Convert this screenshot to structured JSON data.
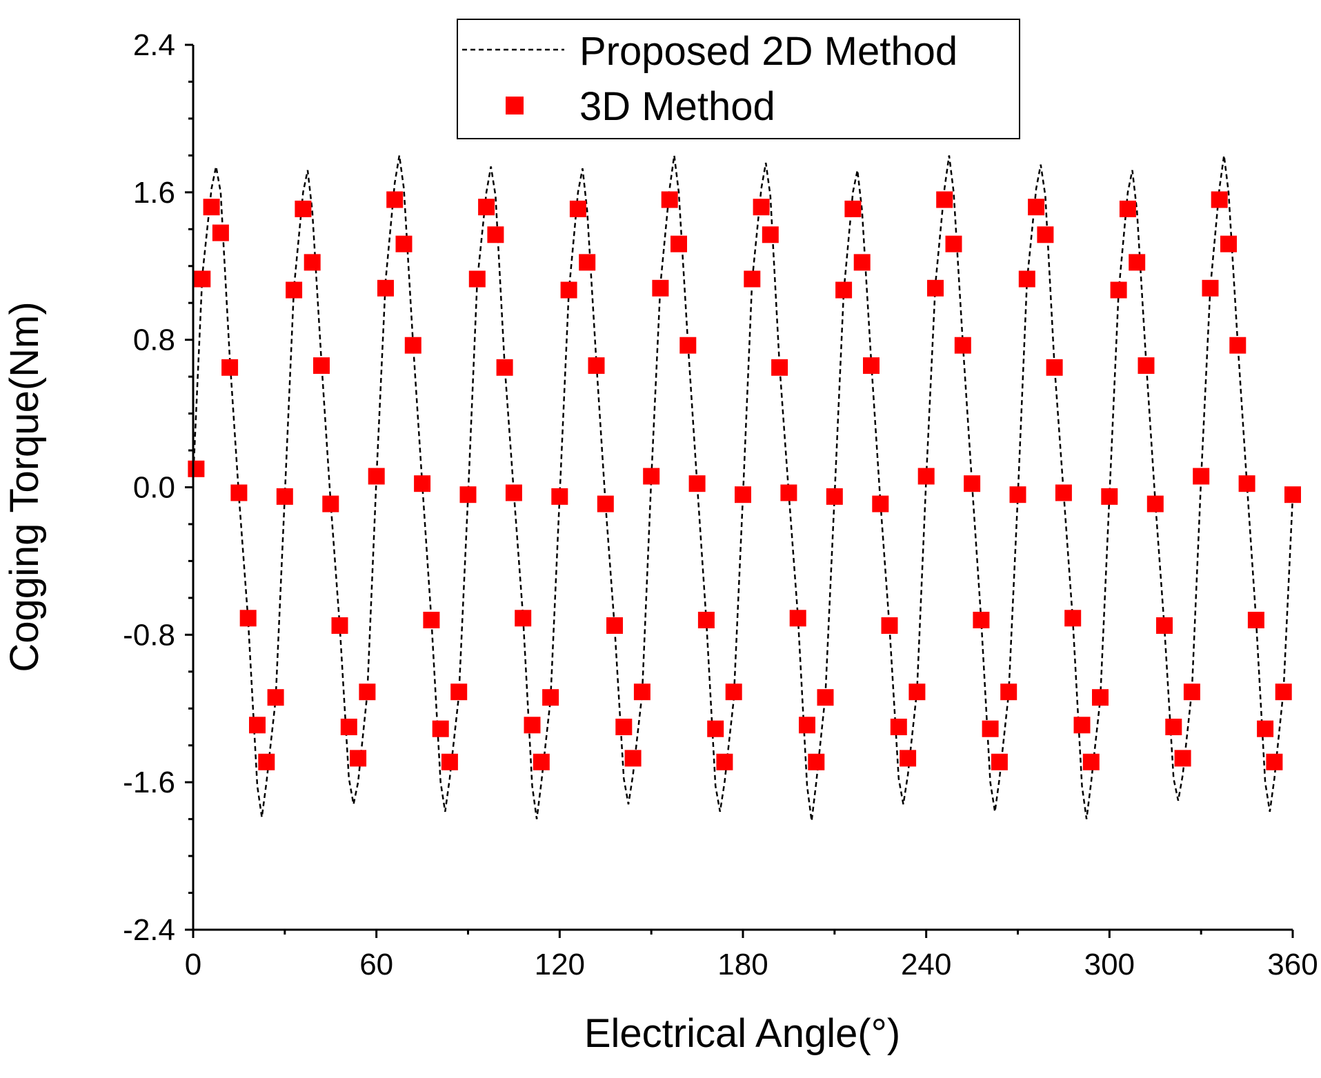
{
  "chart_data": {
    "type": "line",
    "title": "",
    "xlabel": "Electrical Angle(°)",
    "ylabel": "Cogging Torque(Nm)",
    "xlim": [
      0,
      360
    ],
    "ylim": [
      -2.4,
      2.4
    ],
    "x_ticks": [
      0,
      60,
      120,
      180,
      240,
      300,
      360
    ],
    "y_ticks": [
      -2.4,
      -1.6,
      -0.8,
      0.0,
      0.8,
      1.6,
      2.4
    ],
    "x_tick_labels": [
      "0",
      "60",
      "120",
      "180",
      "240",
      "300",
      "360"
    ],
    "y_tick_labels": [
      "-2.4",
      "-1.6",
      "-0.8",
      "0.0",
      "0.8",
      "1.6",
      "2.4"
    ],
    "grid": false,
    "legend_position": "top-center",
    "period_deg": 30,
    "series": [
      {
        "name": "Proposed 2D Method",
        "style": "dashed-line",
        "color": "#000000",
        "x": [
          0,
          3,
          6,
          7.5,
          9,
          12,
          15,
          18,
          21,
          22.5,
          24,
          27,
          30,
          33,
          36,
          37.5,
          39,
          42,
          45,
          48,
          51,
          52.5,
          54,
          57,
          60,
          63,
          66,
          67.5,
          69,
          72,
          75,
          78,
          81,
          82.5,
          84,
          87,
          90,
          93,
          96,
          97.5,
          99,
          102,
          105,
          108,
          111,
          112.5,
          114,
          117,
          120,
          123,
          126,
          127.5,
          129,
          132,
          135,
          138,
          141,
          142.5,
          144,
          147,
          150,
          153,
          156,
          157.5,
          159,
          162,
          165,
          168,
          171,
          172.5,
          174,
          177,
          180,
          183,
          186,
          187.5,
          189,
          192,
          195,
          198,
          201,
          202.5,
          204,
          207,
          210,
          213,
          216,
          217.5,
          219,
          222,
          225,
          228,
          231,
          232.5,
          234,
          237,
          240,
          243,
          246,
          247.5,
          249,
          252,
          255,
          258,
          261,
          262.5,
          264,
          267,
          270,
          273,
          276,
          277.5,
          279,
          282,
          285,
          288,
          291,
          292.5,
          294,
          297,
          300,
          303,
          306,
          307.5,
          309,
          312,
          315,
          318,
          321,
          322.5,
          324,
          327,
          330,
          333,
          336,
          337.5,
          339,
          342,
          345,
          348,
          351,
          352.5,
          354,
          357,
          360
        ],
        "y": [
          0.05,
          1.15,
          1.62,
          1.74,
          1.6,
          0.7,
          -0.05,
          -0.72,
          -1.62,
          -1.79,
          -1.6,
          -1.15,
          -0.05,
          1.08,
          1.6,
          1.72,
          1.5,
          0.68,
          -0.08,
          -0.75,
          -1.58,
          -1.72,
          -1.6,
          -1.12,
          0.05,
          1.12,
          1.65,
          1.8,
          1.62,
          0.78,
          0.02,
          -0.72,
          -1.6,
          -1.76,
          -1.58,
          -1.13,
          -0.05,
          1.12,
          1.6,
          1.74,
          1.58,
          0.66,
          -0.03,
          -0.7,
          -1.62,
          -1.8,
          -1.6,
          -1.15,
          -0.05,
          1.06,
          1.6,
          1.73,
          1.5,
          0.68,
          -0.09,
          -0.76,
          -1.58,
          -1.72,
          -1.56,
          -1.12,
          0.05,
          1.1,
          1.62,
          1.8,
          1.6,
          0.78,
          0.02,
          -0.72,
          -1.62,
          -1.76,
          -1.6,
          -1.15,
          -0.05,
          1.12,
          1.62,
          1.76,
          1.58,
          0.66,
          -0.03,
          -0.7,
          -1.62,
          -1.81,
          -1.6,
          -1.13,
          -0.05,
          1.06,
          1.6,
          1.72,
          1.5,
          0.68,
          -0.08,
          -0.76,
          -1.58,
          -1.72,
          -1.56,
          -1.1,
          0.05,
          1.1,
          1.62,
          1.8,
          1.6,
          0.78,
          0.02,
          -0.72,
          -1.6,
          -1.76,
          -1.58,
          -1.12,
          -0.05,
          1.12,
          1.62,
          1.75,
          1.58,
          0.66,
          -0.03,
          -0.72,
          -1.62,
          -1.8,
          -1.6,
          -1.15,
          -0.05,
          1.06,
          1.6,
          1.72,
          1.5,
          0.68,
          -0.08,
          -0.76,
          -1.58,
          -1.7,
          -1.56,
          -1.1,
          0.05,
          1.08,
          1.62,
          1.8,
          1.6,
          0.78,
          0.02,
          -0.72,
          -1.6,
          -1.76,
          -1.58,
          -1.1,
          -0.05
        ]
      },
      {
        "name": "3D Method",
        "style": "square-marker",
        "color": "#ff0000",
        "x": [
          1,
          3,
          6,
          9,
          12,
          15,
          18,
          21,
          24,
          27,
          30,
          33,
          36,
          39,
          42,
          45,
          48,
          51,
          54,
          57,
          60,
          63,
          66,
          69,
          72,
          75,
          78,
          81,
          84,
          87,
          90,
          93,
          96,
          99,
          102,
          105,
          108,
          111,
          114,
          117,
          120,
          123,
          126,
          129,
          132,
          135,
          138,
          141,
          144,
          147,
          150,
          153,
          156,
          159,
          162,
          165,
          168,
          171,
          174,
          177,
          180,
          183,
          186,
          189,
          192,
          195,
          198,
          201,
          204,
          207,
          210,
          213,
          216,
          219,
          222,
          225,
          228,
          231,
          234,
          237,
          240,
          243,
          246,
          249,
          252,
          255,
          258,
          261,
          264,
          267,
          270,
          273,
          276,
          279,
          282,
          285,
          288,
          291,
          294,
          297,
          300,
          303,
          306,
          309,
          312,
          315,
          318,
          321,
          324,
          327,
          330,
          333,
          336,
          339,
          342,
          345,
          348,
          351,
          354,
          357,
          360
        ],
        "y": [
          0.1,
          1.13,
          1.52,
          1.38,
          0.65,
          -0.03,
          -0.71,
          -1.29,
          -1.49,
          -1.14,
          -0.05,
          1.07,
          1.51,
          1.22,
          0.66,
          -0.09,
          -0.75,
          -1.3,
          -1.47,
          -1.11,
          0.06,
          1.08,
          1.56,
          1.32,
          0.77,
          0.02,
          -0.72,
          -1.31,
          -1.49,
          -1.11,
          -0.04,
          1.13,
          1.52,
          1.37,
          0.65,
          -0.03,
          -0.71,
          -1.29,
          -1.49,
          -1.14,
          -0.05,
          1.07,
          1.51,
          1.22,
          0.66,
          -0.09,
          -0.75,
          -1.3,
          -1.47,
          -1.11,
          0.06,
          1.08,
          1.56,
          1.32,
          0.77,
          0.02,
          -0.72,
          -1.31,
          -1.49,
          -1.11,
          -0.04,
          1.13,
          1.52,
          1.37,
          0.65,
          -0.03,
          -0.71,
          -1.29,
          -1.49,
          -1.14,
          -0.05,
          1.07,
          1.51,
          1.22,
          0.66,
          -0.09,
          -0.75,
          -1.3,
          -1.47,
          -1.11,
          0.06,
          1.08,
          1.56,
          1.32,
          0.77,
          0.02,
          -0.72,
          -1.31,
          -1.49,
          -1.11,
          -0.04,
          1.13,
          1.52,
          1.37,
          0.65,
          -0.03,
          -0.71,
          -1.29,
          -1.49,
          -1.14,
          -0.05,
          1.07,
          1.51,
          1.22,
          0.66,
          -0.09,
          -0.75,
          -1.3,
          -1.47,
          -1.11,
          0.06,
          1.08,
          1.56,
          1.32,
          0.77,
          0.02,
          -0.72,
          -1.31,
          -1.49,
          -1.11,
          -0.04
        ]
      }
    ]
  }
}
